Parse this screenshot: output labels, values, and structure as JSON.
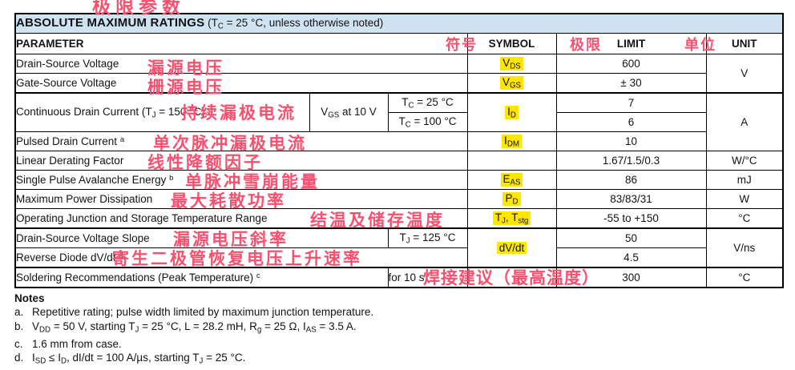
{
  "colors": {
    "title_bar_blue": "#cfe3f1",
    "symbol_highlight_yellow": "#ffe600",
    "annotation_red": "#f8506f",
    "table_border": "#000000"
  },
  "title": {
    "heading": "ABSOLUTE MAXIMUM RATINGS",
    "condition": "(T_{C} = 25 °C, unless otherwise noted)",
    "annotation_cn": "极限参数"
  },
  "columns": {
    "parameter": "PARAMETER",
    "symbol": "SYMBOL",
    "limit": "LIMIT",
    "unit": "UNIT",
    "symbol_cn": "符号",
    "limit_cn": "极限",
    "unit_cn": "单位"
  },
  "rows": {
    "drain_source_voltage": {
      "param": "Drain-Source Voltage",
      "cn": "漏源电压",
      "symbol": "V_{DS}",
      "limit": "600"
    },
    "gate_source_voltage": {
      "param": "Gate-Source Voltage",
      "cn": "栅源电压",
      "symbol": "V_{GS}",
      "limit": "± 30"
    },
    "voltage_unit": "V",
    "continuous_drain_current": {
      "param": "Continuous Drain Current (T_{J} = 150 °C)",
      "cn": "持续漏极电流",
      "condition": "V_{GS} at 10 V",
      "case_25": "T_{C} = 25 °C",
      "case_100": "T_{C} = 100 °C",
      "symbol": "I_{D}",
      "limit_25": "7",
      "limit_100": "6"
    },
    "pulsed_drain_current": {
      "param": "Pulsed Drain Current ^{a}",
      "cn": "单次脉冲漏极电流",
      "symbol": "I_{DM}",
      "limit": "10"
    },
    "current_unit": "A",
    "linear_derating_factor": {
      "param": "Linear Derating Factor",
      "cn": "线性降额因子",
      "limit": "1.67/1.5/0.3",
      "unit": "W/°C"
    },
    "single_pulse_avalanche_energy": {
      "param": "Single Pulse Avalanche Energy ^{b}",
      "cn": "单脉冲雪崩能量",
      "symbol": "E_{AS}",
      "limit": "86",
      "unit": "mJ"
    },
    "maximum_power_dissipation": {
      "param": "Maximum Power Dissipation",
      "cn": "最大耗散功率",
      "symbol": "P_{D}",
      "limit": "83/83/31",
      "unit": "W"
    },
    "operating_junction_storage_temp": {
      "param": "Operating Junction and Storage Temperature Range",
      "cn": "结温及储存温度",
      "symbol": "T_{J}, T_{stg}",
      "limit": "-55 to +150",
      "unit": "°C"
    },
    "drain_source_voltage_slope": {
      "param": "Drain-Source Voltage Slope",
      "cn": "漏源电压斜率",
      "condition": "T_{J} = 125 °C",
      "symbol": "dV/dt",
      "limit": "50"
    },
    "reverse_diode_dvdt": {
      "param": "Reverse Diode dV/dt ^{d}",
      "cn": "寄生二极管恢复电压上升速率",
      "limit": "4.5"
    },
    "slope_unit": "V/ns",
    "soldering_recommendations": {
      "param": "Soldering Recommendations (Peak Temperature) ^{c}",
      "condition": "for 10 s",
      "cn": "焊接建议（最高温度）",
      "limit": "300",
      "unit": "°C"
    }
  },
  "notes": {
    "heading": "Notes",
    "items": [
      {
        "label": "a.",
        "text": "Repetitive rating; pulse width limited by maximum junction temperature."
      },
      {
        "label": "b.",
        "text": "V_{DD} = 50 V, starting T_{J} = 25 °C, L = 28.2 mH, R_{g} = 25 Ω, I_{AS} = 3.5 A."
      },
      {
        "label": "c.",
        "text": "1.6 mm from case."
      },
      {
        "label": "d.",
        "text": "I_{SD} ≤ I_{D}, dI/dt = 100 A/µs, starting T_{J} = 25 °C."
      }
    ]
  }
}
